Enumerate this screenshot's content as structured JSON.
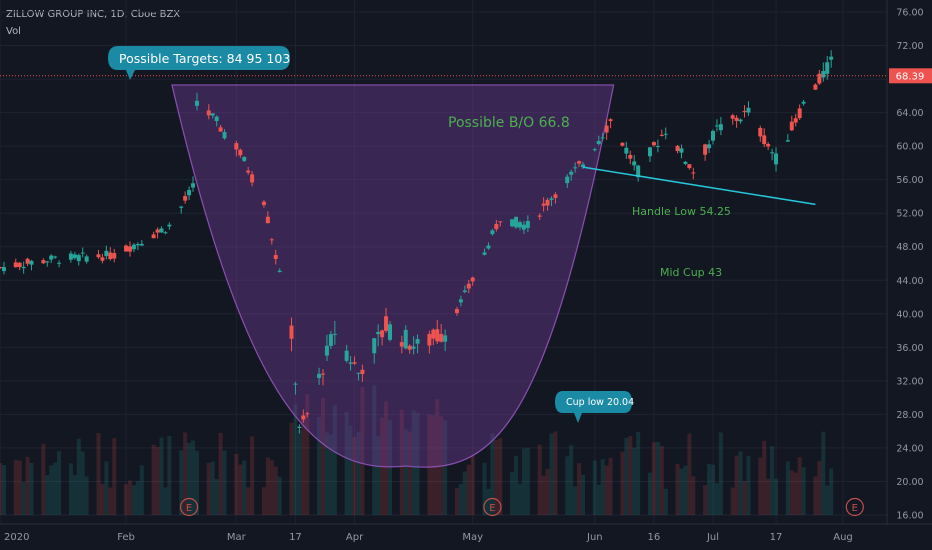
{
  "header": {
    "symbol": "ZILLOW GROUP INC, 1D, Cboe BZX",
    "indicator": "Vol"
  },
  "price_axis": {
    "ticks": [
      "76.00",
      "72.00",
      "68.00",
      "64.00",
      "60.00",
      "56.00",
      "52.00",
      "48.00",
      "44.00",
      "40.00",
      "36.00",
      "32.00",
      "28.00",
      "24.00",
      "20.00",
      "16.00"
    ],
    "last_price_label": "68.39"
  },
  "time_axis": {
    "labels": [
      "2020",
      "Feb",
      "Mar",
      "17",
      "Apr",
      "May",
      "Jun",
      "16",
      "Jul",
      "17",
      "Aug"
    ]
  },
  "annotations": {
    "targets": "Possible Targets:  84  95  103",
    "breakout": "Possible B/O  66.8",
    "handle_low": "Handle Low 54.25",
    "mid_cup": "Mid Cup  43",
    "cup_low": "Cup low  20.04",
    "earnings_marker": "E"
  },
  "colors": {
    "background": "#131722",
    "up_candle": "#26a69a",
    "down_candle": "#ef5350",
    "cup_fill": "#7b3fa0",
    "annotation_text": "#4caf50",
    "callout_bg": "#1b8aa5",
    "trendline": "#26c6da",
    "price_line": "#ef5350"
  },
  "chart_data": {
    "type": "candlestick",
    "title": "ZILLOW GROUP INC, 1D, Cboe BZX",
    "ylim": [
      16,
      76
    ],
    "y_ticks": [
      16,
      20,
      24,
      28,
      32,
      36,
      40,
      44,
      48,
      52,
      56,
      60,
      64,
      68,
      72,
      76
    ],
    "x_labels": [
      "2020",
      "Feb",
      "Mar",
      "17",
      "Apr",
      "May",
      "Jun",
      "16",
      "Jul",
      "17",
      "Aug"
    ],
    "last_price": 68.39,
    "close_path_approx": [
      [
        "2020-01-02",
        45.5
      ],
      [
        "2020-01-15",
        46.5
      ],
      [
        "2020-01-31",
        47.0
      ],
      [
        "2020-02-14",
        50.5
      ],
      [
        "2020-02-20",
        55.0
      ],
      [
        "2020-02-21",
        65.5
      ],
      [
        "2020-03-02",
        60.0
      ],
      [
        "2020-03-09",
        53.5
      ],
      [
        "2020-03-16",
        38.0
      ],
      [
        "2020-03-18",
        26.0
      ],
      [
        "2020-03-20",
        28.0
      ],
      [
        "2020-03-27",
        38.0
      ],
      [
        "2020-04-02",
        33.0
      ],
      [
        "2020-04-09",
        38.5
      ],
      [
        "2020-04-17",
        36.0
      ],
      [
        "2020-04-24",
        38.0
      ],
      [
        "2020-05-01",
        44.0
      ],
      [
        "2020-05-08",
        51.5
      ],
      [
        "2020-05-15",
        50.5
      ],
      [
        "2020-05-22",
        54.5
      ],
      [
        "2020-05-29",
        58.0
      ],
      [
        "2020-06-05",
        63.0
      ],
      [
        "2020-06-12",
        57.0
      ],
      [
        "2020-06-19",
        62.0
      ],
      [
        "2020-06-26",
        57.0
      ],
      [
        "2020-07-02",
        62.0
      ],
      [
        "2020-07-10",
        64.0
      ],
      [
        "2020-07-17",
        58.5
      ],
      [
        "2020-07-24",
        65.0
      ],
      [
        "2020-07-31",
        70.0
      ]
    ],
    "annotations": {
      "cup_low": 20.04,
      "mid_cup": 43,
      "handle_low": 54.25,
      "breakout": 66.8,
      "targets": [
        84,
        95,
        103
      ]
    }
  }
}
